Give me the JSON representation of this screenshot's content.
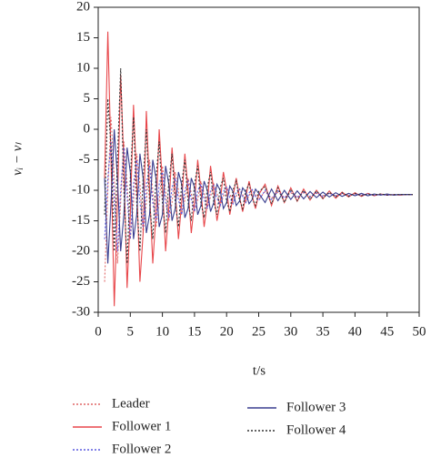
{
  "chart_data": {
    "type": "line",
    "xlabel": "t/s",
    "ylabel": "νᵢ − νₗ",
    "x": [
      1,
      1.5,
      2,
      2.5,
      3,
      3.5,
      4,
      4.5,
      5,
      5.5,
      6,
      6.5,
      7,
      7.5,
      8,
      8.5,
      9,
      9.5,
      10,
      10.5,
      11,
      11.5,
      12,
      12.5,
      13,
      13.5,
      14,
      14.5,
      15,
      15.5,
      16,
      16.5,
      17,
      17.5,
      18,
      18.5,
      19,
      19.5,
      20,
      20.5,
      21,
      21.5,
      22,
      22.5,
      23,
      23.5,
      24,
      24.5,
      25,
      26,
      27,
      28,
      29,
      30,
      31,
      32,
      33,
      34,
      35,
      36,
      37,
      38,
      39,
      40,
      41,
      42,
      43,
      44,
      45,
      46,
      47,
      48,
      49
    ],
    "series": [
      {
        "name": "Leader",
        "color": "#e06666",
        "style": "dotted",
        "values": [
          -25,
          -10,
          2,
          -8,
          -22,
          -12,
          -2,
          -9,
          -18,
          -12,
          -4,
          -9,
          -17,
          -12,
          -5,
          -10,
          -16,
          -12,
          -6,
          -10,
          -15,
          -12,
          -7,
          -10,
          -14,
          -11.5,
          -8,
          -10.5,
          -13.5,
          -11.5,
          -8.5,
          -10.5,
          -13,
          -11,
          -9,
          -10.5,
          -12.5,
          -11,
          -9.5,
          -10.6,
          -12,
          -11,
          -9.8,
          -10.7,
          -11.8,
          -10.9,
          -10,
          -10.7,
          -11.5,
          -10.2,
          -11.3,
          -10.3,
          -11.2,
          -10.4,
          -11.1,
          -10.4,
          -11,
          -10.5,
          -10.9,
          -10.5,
          -10.9,
          -10.6,
          -10.8,
          -10.6,
          -10.8,
          -10.6,
          -10.8,
          -10.7,
          -10.7,
          -10.8,
          -10.7,
          -10.7,
          -10.7
        ]
      },
      {
        "name": "Follower 1",
        "color": "#e8474b",
        "style": "solid",
        "values": [
          -8,
          16,
          -5,
          -29,
          -12,
          9,
          -6,
          -26,
          -14,
          4,
          -9,
          -25,
          -17,
          3,
          -10,
          -22,
          -14,
          0,
          -9,
          -20,
          -13,
          -3,
          -10,
          -18,
          -12,
          -4,
          -10,
          -17,
          -12,
          -5,
          -10,
          -16,
          -12,
          -6,
          -10,
          -15,
          -12,
          -7,
          -10,
          -14,
          -11,
          -8,
          -11,
          -13.5,
          -11,
          -8.5,
          -11,
          -13,
          -10.7,
          -9,
          -12.5,
          -9.3,
          -12,
          -9.6,
          -11.8,
          -9.8,
          -11.6,
          -10,
          -11.4,
          -10.1,
          -11.3,
          -10.3,
          -11.1,
          -10.4,
          -11,
          -10.5,
          -10.9,
          -10.6,
          -10.8,
          -10.7,
          -10.8,
          -10.7,
          -10.7
        ]
      },
      {
        "name": "Follower 2",
        "color": "#5a5adf",
        "style": "dotted",
        "values": [
          -18,
          -8,
          -2,
          -12,
          -20,
          -10,
          -3,
          -11,
          -18,
          -9,
          -5,
          -12,
          -16,
          -9,
          -6,
          -12,
          -15,
          -9,
          -7,
          -12,
          -14.5,
          -9.5,
          -8,
          -11.5,
          -14,
          -10,
          -8.5,
          -11.5,
          -13.5,
          -10,
          -9,
          -11.5,
          -13,
          -10,
          -9.2,
          -11.3,
          -12.5,
          -10.2,
          -9.5,
          -11.2,
          -12.2,
          -10.3,
          -9.7,
          -11,
          -12,
          -10.4,
          -9.9,
          -11,
          -11.7,
          -10,
          -11.5,
          -10.1,
          -11.3,
          -10.2,
          -11.2,
          -10.3,
          -11.1,
          -10.4,
          -11,
          -10.5,
          -10.9,
          -10.5,
          -10.9,
          -10.6,
          -10.8,
          -10.6,
          -10.8,
          -10.7,
          -10.8,
          -10.7,
          -10.7,
          -10.7,
          -10.7
        ]
      },
      {
        "name": "Follower 3",
        "color": "#3a3f8f",
        "style": "solid",
        "values": [
          -8,
          -22,
          -12,
          0,
          -8,
          -20,
          -14,
          -3,
          -7,
          -18,
          -14,
          -4,
          -8,
          -17,
          -14,
          -5,
          -8,
          -16,
          -14,
          -6,
          -9,
          -15,
          -13,
          -7,
          -9,
          -14.5,
          -13,
          -8,
          -9.5,
          -14,
          -12.5,
          -8.5,
          -10,
          -13.5,
          -12,
          -9,
          -10,
          -13,
          -12,
          -9.3,
          -10.2,
          -12.5,
          -11.8,
          -9.6,
          -10.3,
          -12.2,
          -11.5,
          -9.8,
          -10.5,
          -12,
          -9.8,
          -11.7,
          -10,
          -11.5,
          -10.1,
          -11.4,
          -10.2,
          -11.2,
          -10.3,
          -11.1,
          -10.4,
          -11,
          -10.5,
          -10.9,
          -10.5,
          -10.9,
          -10.6,
          -10.8,
          -10.6,
          -10.8,
          -10.7,
          -10.7,
          -10.7
        ]
      },
      {
        "name": "Follower 4",
        "color": "#333333",
        "style": "dotted",
        "values": [
          -14,
          5,
          -3,
          -20,
          -5,
          10,
          -10,
          -22,
          -8,
          2,
          -12,
          -20,
          -8,
          0,
          -12,
          -18,
          -8,
          -2,
          -12,
          -17,
          -8.5,
          -4,
          -12,
          -16,
          -9,
          -5,
          -12,
          -15,
          -9,
          -6,
          -12,
          -14.5,
          -9.5,
          -7,
          -12,
          -14,
          -9.5,
          -8,
          -11.8,
          -13.5,
          -10,
          -8.5,
          -11.5,
          -13,
          -10,
          -9,
          -11.3,
          -12.5,
          -10.2,
          -9.4,
          -12.2,
          -9.6,
          -12,
          -9.8,
          -11.7,
          -10,
          -11.5,
          -10.1,
          -11.3,
          -10.3,
          -11.1,
          -10.4,
          -11,
          -10.5,
          -10.9,
          -10.6,
          -10.8,
          -10.6,
          -10.8,
          -10.7,
          -10.7,
          -10.7,
          -10.7
        ]
      }
    ],
    "xlim": [
      0,
      50
    ],
    "xticks": [
      0,
      5,
      10,
      15,
      20,
      25,
      30,
      35,
      40,
      45,
      50
    ],
    "ylim": [
      -30,
      20
    ],
    "yticks": [
      -30,
      -25,
      -20,
      -15,
      -10,
      -5,
      0,
      5,
      10,
      15,
      20
    ],
    "legend": "bottom"
  }
}
